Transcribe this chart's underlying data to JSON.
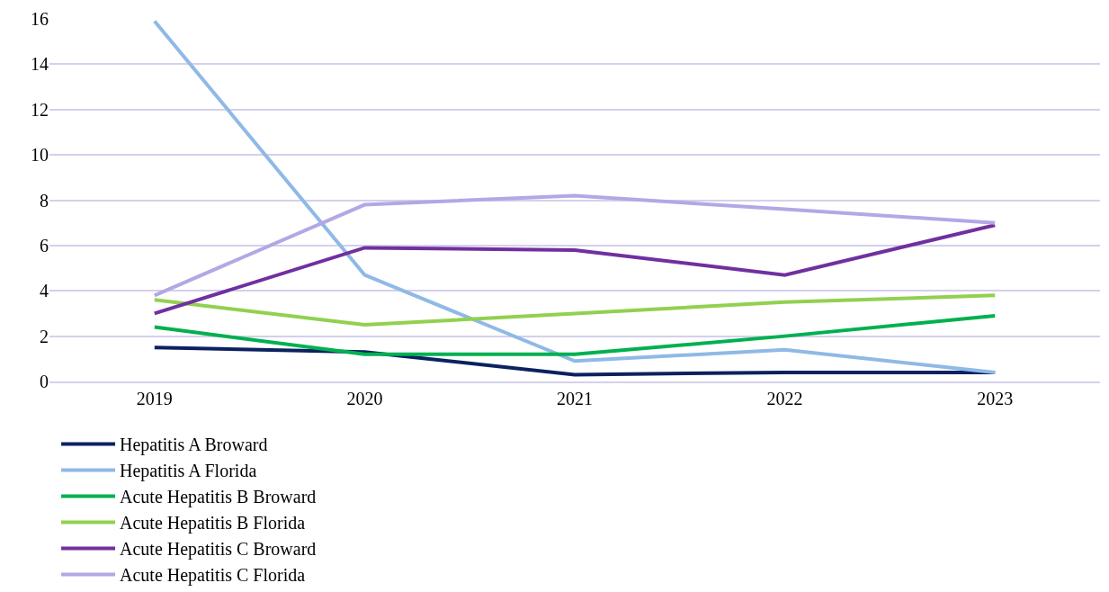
{
  "chart_data": {
    "type": "line",
    "categories": [
      "2019",
      "2020",
      "2021",
      "2022",
      "2023"
    ],
    "series": [
      {
        "name": "Hepatitis A Broward",
        "color": "#0b2160",
        "values": [
          1.5,
          1.3,
          0.3,
          0.4,
          0.4
        ]
      },
      {
        "name": "Hepatitis A Florida",
        "color": "#8fb9e6",
        "values": [
          15.9,
          4.7,
          0.9,
          1.4,
          0.4
        ]
      },
      {
        "name": "Acute Hepatitis B Broward",
        "color": "#00b050",
        "values": [
          2.4,
          1.2,
          1.2,
          2.0,
          2.9
        ]
      },
      {
        "name": "Acute Hepatitis B Florida",
        "color": "#92d050",
        "values": [
          3.6,
          2.5,
          3.0,
          3.5,
          3.8
        ]
      },
      {
        "name": "Acute Hepatitis C Broward",
        "color": "#7030a0",
        "values": [
          3.0,
          5.9,
          5.8,
          4.7,
          6.9
        ]
      },
      {
        "name": "Acute Hepatitis C Florida",
        "color": "#b4a7e5",
        "values": [
          3.8,
          7.8,
          8.2,
          7.6,
          7.0
        ]
      }
    ],
    "ylim": [
      0,
      16
    ],
    "yticks": [
      0,
      2,
      4,
      6,
      8,
      10,
      12,
      14,
      16
    ],
    "grid": "y",
    "legend": "bottom",
    "marker": "none",
    "line_style": "solid"
  }
}
